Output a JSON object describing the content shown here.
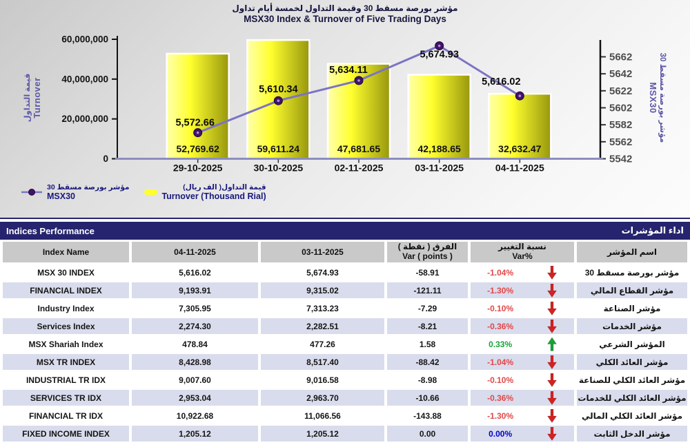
{
  "chart": {
    "title_ar": "مؤشر بورصة مسقط 30 وقيمة التداول لخمسة أيام تداول",
    "title_en": "MSX30 Index & Turnover of Five Trading Days",
    "left_axis_label_ar": "قيمة التداول",
    "left_axis_label_en": "Turnover",
    "right_axis_label_ar": "مؤشر بورصة مسقط 30",
    "right_axis_label_en": "MSX30",
    "legend": {
      "msx30_label_ar": "مؤشر بورصة مسقط 30",
      "msx30_label_en": "MSX30",
      "turnover_label_ar": "قيمة التداول( الف ريال)",
      "turnover_label_en": "Turnover (Thousand Rial)"
    }
  },
  "chart_data": {
    "type": "bar",
    "subtype": "bar+line dual-axis combo",
    "title": "MSX30 Index & Turnover of Five Trading Days",
    "categories": [
      "29-10-2025",
      "30-10-2025",
      "02-11-2025",
      "03-11-2025",
      "04-11-2025"
    ],
    "series": [
      {
        "name": "Turnover (Thousand Rial)",
        "type": "bar",
        "axis": "left",
        "unit": "Thousand Rial",
        "values": [
          52769.62,
          59611.24,
          47681.65,
          42188.65,
          32632.47
        ],
        "labels": [
          "52,769.62",
          "59,611.24",
          "47,681.65",
          "42,188.65",
          "32,632.47"
        ]
      },
      {
        "name": "MSX30",
        "type": "line",
        "axis": "right",
        "values": [
          5572.66,
          5610.34,
          5634.11,
          5674.93,
          5616.02
        ],
        "labels": [
          "5,572.66",
          "5,610.34",
          "5,634.11",
          "5,674.93",
          "5,616.02"
        ]
      }
    ],
    "left_axis": {
      "label": "Turnover / قيمة التداول",
      "min": 0,
      "max": 60000000,
      "tick_values": [
        0,
        20000000,
        40000000,
        60000000
      ],
      "tick_labels": [
        "0",
        "20,000,000",
        "40,000,000",
        "60,000,000"
      ],
      "bar_value_multiplier": 1000
    },
    "right_axis": {
      "label": "MSX30 / مؤشر بورصة مسقط 30",
      "min": 5542,
      "max": 5672,
      "tick_step": 20,
      "tick_values": [
        5542,
        5562,
        5582,
        5602,
        5622,
        5642,
        5662
      ]
    },
    "grid": false,
    "legend_position": "bottom-left"
  },
  "colors": {
    "navy": "#26246E",
    "title_text": "#15153F",
    "header_bg": "#C9C9C9",
    "row_bg": "#FFFFFF",
    "row_alt_bg": "#D9DCEC",
    "negative_text": "#E04848",
    "positive_text": "#1AA238",
    "zero_text": "#0000CC",
    "arrow_down": "#D42121",
    "arrow_up": "#17A237",
    "bar_yellow_light": "#FFFFA8",
    "bar_yellow": "#FFFF2E",
    "bar_olive": "#97970E",
    "line_purple": "#7B74C5",
    "marker_purple": "#41136B",
    "axis_label_purple": "#5D58A6",
    "right_tick_gray": "#4D4D4D"
  },
  "table": {
    "title_en": "Indices Performance",
    "title_ar": "اداء المؤشرات",
    "columns": [
      {
        "en": "Index Name",
        "ar": ""
      },
      {
        "en": "04-11-2025",
        "ar": ""
      },
      {
        "en": "03-11-2025",
        "ar": ""
      },
      {
        "en": "Var ( points )",
        "ar": "الفرق ( نقطة )"
      },
      {
        "en": "Var%",
        "ar": "نسبة التغيير"
      },
      {
        "en": "",
        "ar": "اسم المؤشر"
      }
    ],
    "rows": [
      {
        "name_en": "MSX 30 INDEX",
        "current": "5,616.02",
        "previous": "5,674.93",
        "var_points": "-58.91",
        "var_pct": "-1.04%",
        "direction": "down",
        "trend": "negative",
        "name_ar": "مؤشر بورصة مسقط 30"
      },
      {
        "name_en": "FINANCIAL INDEX",
        "current": "9,193.91",
        "previous": "9,315.02",
        "var_points": "-121.11",
        "var_pct": "-1.30%",
        "direction": "down",
        "trend": "negative",
        "name_ar": "مؤشر القطاع المالي"
      },
      {
        "name_en": "Industry Index",
        "current": "7,305.95",
        "previous": "7,313.23",
        "var_points": "-7.29",
        "var_pct": "-0.10%",
        "direction": "down",
        "trend": "negative",
        "name_ar": "مؤشر الصناعة"
      },
      {
        "name_en": "Services Index",
        "current": "2,274.30",
        "previous": "2,282.51",
        "var_points": "-8.21",
        "var_pct": "-0.36%",
        "direction": "down",
        "trend": "negative",
        "name_ar": "مؤشر الخدمات"
      },
      {
        "name_en": "MSX Shariah Index",
        "current": "478.84",
        "previous": "477.26",
        "var_points": "1.58",
        "var_pct": "0.33%",
        "direction": "up",
        "trend": "positive",
        "name_ar": "المؤشر الشرعي"
      },
      {
        "name_en": "MSX TR INDEX",
        "current": "8,428.98",
        "previous": "8,517.40",
        "var_points": "-88.42",
        "var_pct": "-1.04%",
        "direction": "down",
        "trend": "negative",
        "name_ar": "مؤشر العائد الكلي"
      },
      {
        "name_en": "INDUSTRIAL TR IDX",
        "current": "9,007.60",
        "previous": "9,016.58",
        "var_points": "-8.98",
        "var_pct": "-0.10%",
        "direction": "down",
        "trend": "negative",
        "name_ar": "مؤشر العائد الكلي للصناعة"
      },
      {
        "name_en": "SERVICES TR IDX",
        "current": "2,953.04",
        "previous": "2,963.70",
        "var_points": "-10.66",
        "var_pct": "-0.36%",
        "direction": "down",
        "trend": "negative",
        "name_ar": "مؤشر العائد الكلي للخدمات"
      },
      {
        "name_en": "FINANCIAL TR IDX",
        "current": "10,922.68",
        "previous": "11,066.56",
        "var_points": "-143.88",
        "var_pct": "-1.30%",
        "direction": "down",
        "trend": "negative",
        "name_ar": "مؤشر العائد الكلي المالي"
      },
      {
        "name_en": "FIXED INCOME INDEX",
        "current": "1,205.12",
        "previous": "1,205.12",
        "var_points": "0.00",
        "var_pct": "0.00%",
        "direction": "down",
        "trend": "zero",
        "name_ar": "مؤشر الدخل الثابت"
      }
    ]
  }
}
